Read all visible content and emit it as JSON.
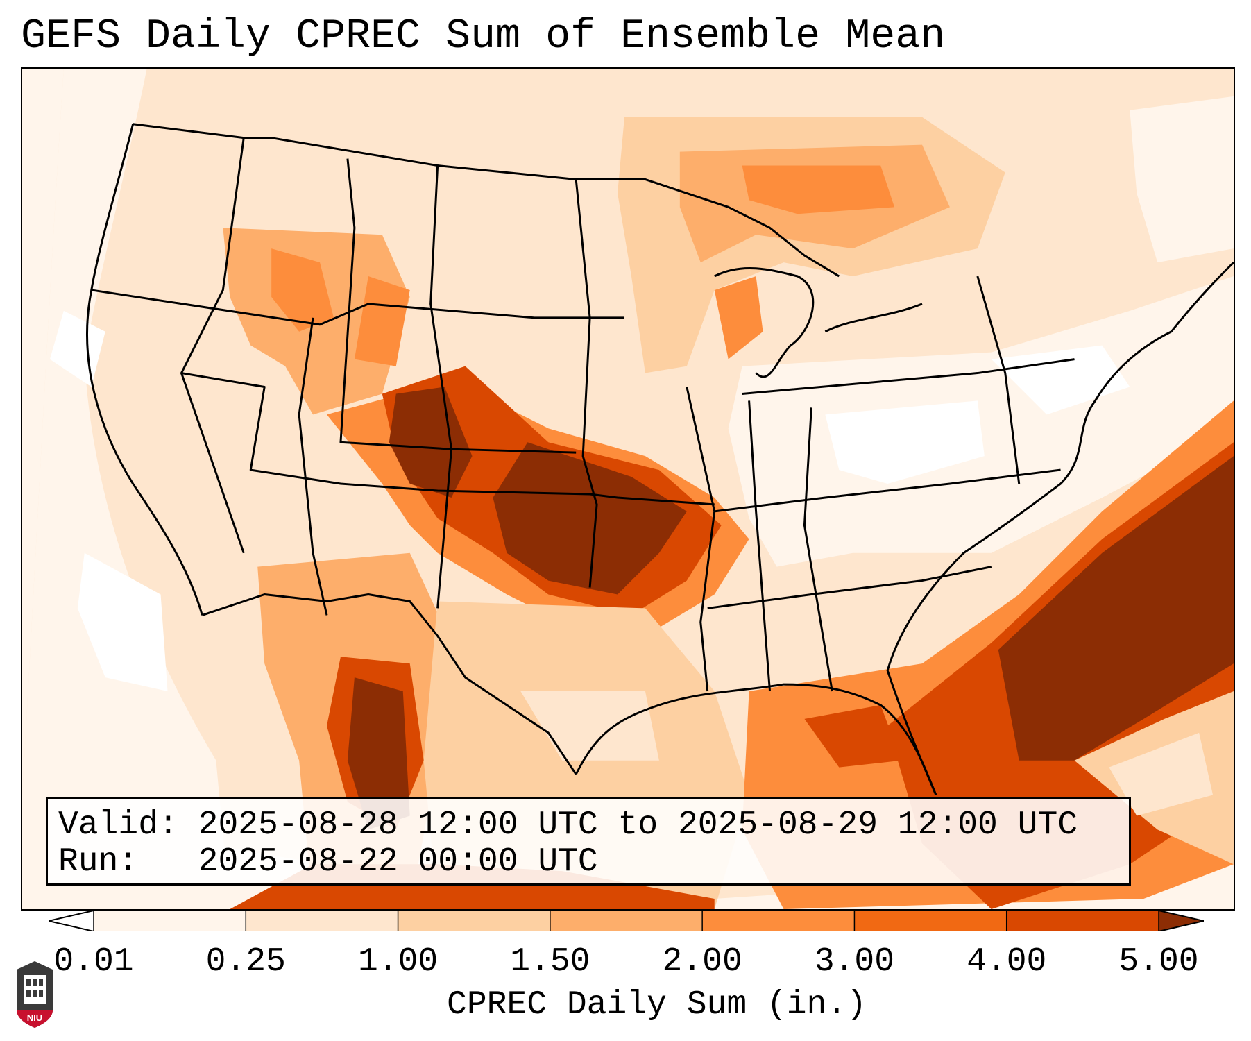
{
  "title": "GEFS Daily CPREC Sum of Ensemble Mean",
  "info": {
    "valid_label": "Valid:",
    "valid_value": "2025-08-28 12:00 UTC to 2025-08-29 12:00 UTC",
    "run_label": "Run:",
    "run_value": "2025-08-22 00:00 UTC"
  },
  "colorbar": {
    "label": "CPREC Daily Sum (in.)",
    "ticks": [
      "0.01",
      "0.25",
      "1.00",
      "1.50",
      "2.00",
      "3.00",
      "4.00",
      "5.00"
    ],
    "colors": [
      "#fff5eb",
      "#fee6ce",
      "#fdd0a2",
      "#fdae6b",
      "#fd8d3c",
      "#f16913",
      "#d94801",
      "#8c2d04"
    ]
  },
  "logo": {
    "text": "NIU",
    "colors": {
      "shield": "#c8102e",
      "tower": "#3a3a3a"
    }
  },
  "map_colors": {
    "ocean_faint": "#fff5eb",
    "outline": "#000000"
  }
}
